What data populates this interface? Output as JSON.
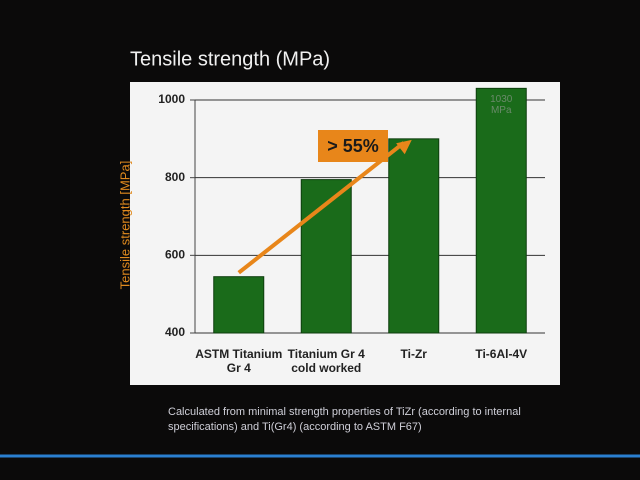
{
  "chart_data": {
    "type": "bar",
    "title": "Tensile strength (MPa)",
    "y_label": "Tensile strength [MPa]",
    "categories": [
      "ASTM Titanium\nGr 4",
      "Titanium Gr 4\ncold worked",
      "Ti-Zr",
      "Ti-6Al-4V"
    ],
    "values": [
      545,
      795,
      900,
      1030
    ],
    "value_labels": [
      null,
      null,
      null,
      "1030\nMPa"
    ],
    "color": "#1a6b1a",
    "ylim": [
      400,
      1000
    ],
    "yticks": [
      400,
      600,
      800,
      1000
    ],
    "grid": true,
    "annotation": "> 55%",
    "caption": "Calculated from minimal strength properties of TiZr (according to internal specifications) and Ti(Gr4) (according to ASTM F67)"
  }
}
